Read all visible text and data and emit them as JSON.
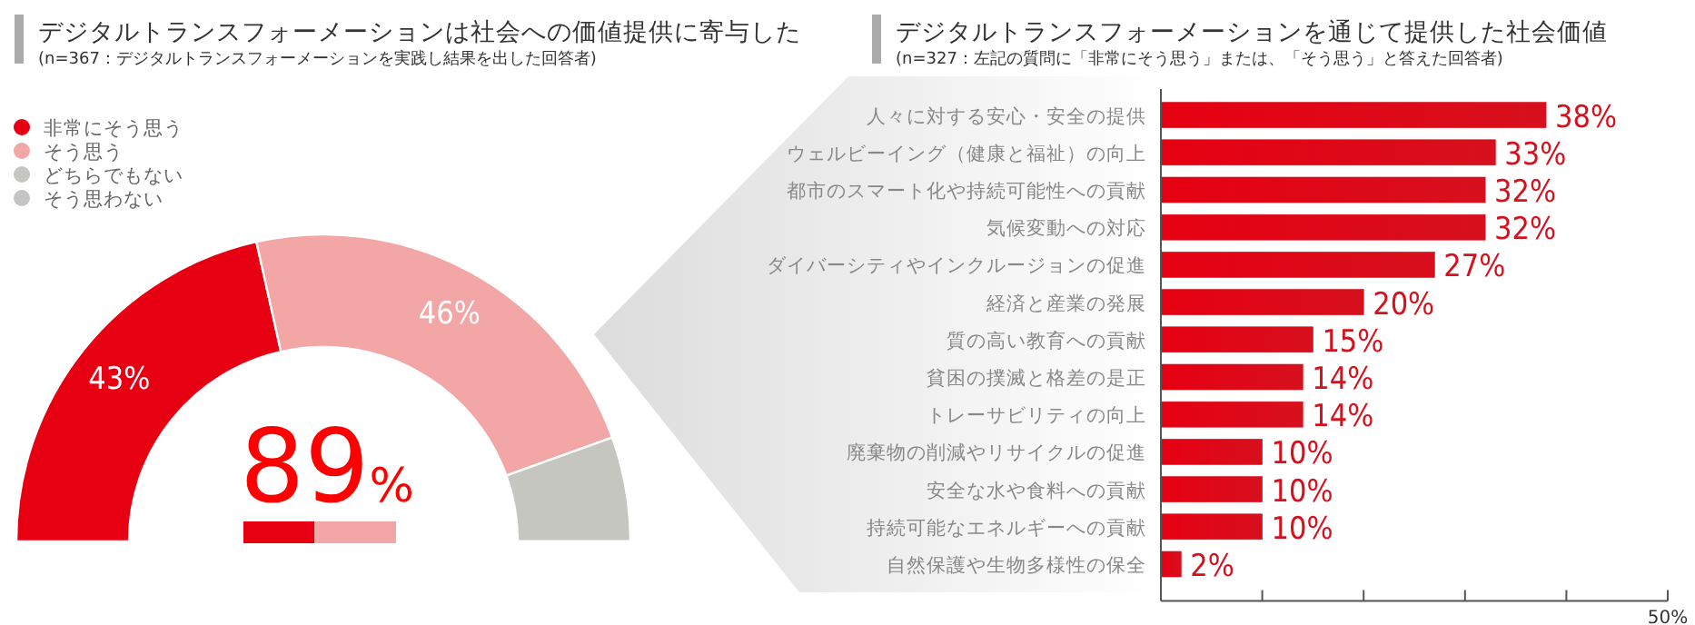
{
  "chart_data": [
    {
      "type": "donut",
      "title": "デジタルトランスフォーメーションは社会への価値提供に寄与した",
      "subtitle": "(n=367：デジタルトランスフォーメーションを実践し結果を出した回答者)",
      "categories": [
        "非常にそう思う",
        "そう思う",
        "どちらでもない",
        "そう思わない"
      ],
      "values": [
        43,
        46,
        11,
        0
      ],
      "colors": [
        "#e60012",
        "#f2a7a6",
        "#c6c6c0",
        "#c4c4c4"
      ],
      "value_labels": [
        "43%",
        "46%",
        null,
        null
      ],
      "annotations": [
        "89%"
      ],
      "legend": "top left"
    },
    {
      "type": "bar",
      "orientation": "horizontal",
      "title": "デジタルトランスフォーメーションを通じて提供した社会価値",
      "subtitle": "(n=327：左記の質問に「非常にそう思う」または、「そう思う」と答えた回答者)",
      "categories": [
        "人々に対する安心・安全の提供",
        "ウェルビーイング（健康と福祉）の向上",
        "都市のスマート化や持続可能性への貢献",
        "気候変動への対応",
        "ダイバーシティやインクルージョンの促進",
        "経済と産業の発展",
        "質の高い教育への貢献",
        "貧困の撲滅と格差の是正",
        "トレーサビリティの向上",
        "廃棄物の削減やリサイクルの促進",
        "安全な水や食料への貢献",
        "持続可能なエネルギーへの貢献",
        "自然保護や生物多様性の保全"
      ],
      "values": [
        38,
        33,
        32,
        32,
        27,
        20,
        15,
        14,
        14,
        10,
        10,
        10,
        2
      ],
      "value_labels": [
        "38%",
        "33%",
        "32%",
        "32%",
        "27%",
        "20%",
        "15%",
        "14%",
        "14%",
        "10%",
        "10%",
        "10%",
        "2%"
      ],
      "color": "#d7101d",
      "xlim": [
        0,
        50
      ],
      "xticks": [
        {
          "value": 10,
          "label": null
        },
        {
          "value": 20,
          "label": null
        },
        {
          "value": 30,
          "label": null
        },
        {
          "value": 40,
          "label": null
        },
        {
          "value": 50,
          "label": "50%"
        }
      ]
    }
  ]
}
